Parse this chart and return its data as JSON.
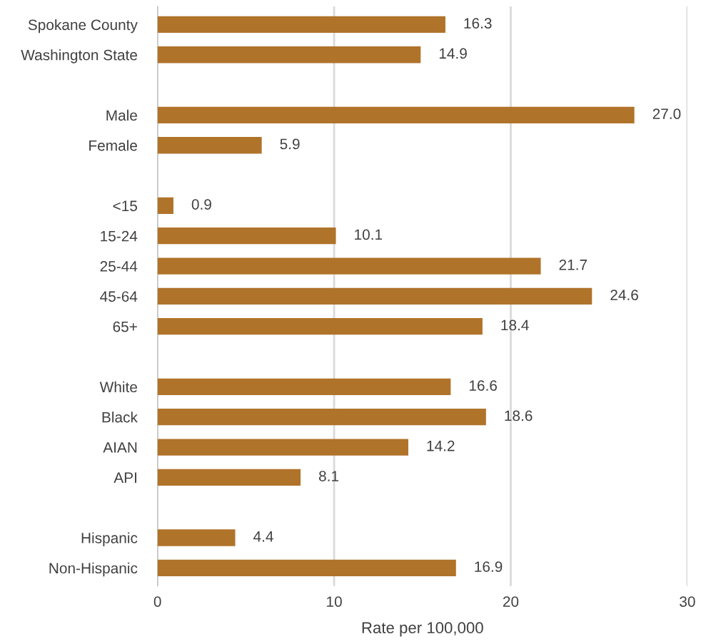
{
  "chart_data": {
    "type": "bar",
    "orientation": "horizontal",
    "xlabel": "Rate per 100,000",
    "categories": [
      "Spokane County",
      "Washington State",
      null,
      "Male",
      "Female",
      null,
      "<15",
      "15-24",
      "25-44",
      "45-64",
      "65+",
      null,
      "White",
      "Black",
      "AIAN",
      "API",
      null,
      "Hispanic",
      "Non-Hispanic"
    ],
    "values": [
      16.3,
      14.9,
      null,
      27.0,
      5.9,
      null,
      0.9,
      10.1,
      21.7,
      24.6,
      18.4,
      null,
      16.6,
      18.6,
      14.2,
      8.1,
      null,
      4.4,
      16.9
    ],
    "value_labels": [
      "16.3",
      "14.9",
      null,
      "27.0",
      "5.9",
      null,
      "0.9",
      "10.1",
      "21.7",
      "24.6",
      "18.4",
      null,
      "16.6",
      "18.6",
      "14.2",
      "8.1",
      null,
      "4.4",
      "16.9"
    ],
    "color": "#b0732a",
    "xlim": [
      0,
      30
    ],
    "xticks": [
      0,
      10,
      20,
      30
    ],
    "grid": "x"
  }
}
